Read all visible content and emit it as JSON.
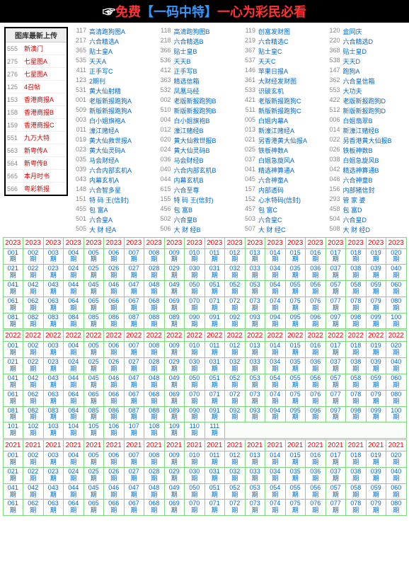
{
  "banner": {
    "hand": "☞",
    "t1": "免费",
    "t2": "【一码中特】",
    "t3": "一心为彩民必看"
  },
  "leftbox": {
    "title": "图库最新上传",
    "items": [
      {
        "n": "555",
        "t": "新澳门"
      },
      {
        "n": "275",
        "t": "七星图A"
      },
      {
        "n": "276",
        "t": "七星图A"
      },
      {
        "n": "125",
        "t": "4召帖"
      },
      {
        "n": "153",
        "t": "香港商报A"
      },
      {
        "n": "158",
        "t": "香港商报B"
      },
      {
        "n": "159",
        "t": "香港商报C"
      },
      {
        "n": "551",
        "t": "九万大特"
      },
      {
        "n": "563",
        "t": "新粤传A"
      },
      {
        "n": "564",
        "t": "新粤传B"
      },
      {
        "n": "565",
        "t": "本月时书"
      },
      {
        "n": "566",
        "t": "粤彩新报"
      }
    ]
  },
  "links": [
    [
      "117",
      "高清跑狗图A",
      "118",
      "高清跑狗图B",
      "119",
      "创富发财图",
      "120",
      "盒同庆"
    ],
    [
      "217",
      "六合精选A",
      "218",
      "六合精选B",
      "219",
      "六合精选C",
      "220",
      "六合精选D"
    ],
    [
      "365",
      "贴士皇A",
      "366",
      "贴士皇B",
      "367",
      "贴士皇C",
      "368",
      "贴士皇D"
    ],
    [
      "535",
      "天天A",
      "536",
      "天天B",
      "537",
      "天天C",
      "538",
      "天天D"
    ],
    [
      "411",
      "正手写C",
      "412",
      "正手写B",
      "146",
      "苹果日报A",
      "147",
      "跑狗A"
    ],
    [
      "123",
      "2期刊",
      "363",
      "精选信箱",
      "361",
      "大财经发财图",
      "362",
      "六合皇信箱"
    ],
    [
      "531",
      "黄大仙射精",
      "532",
      "凤凰马经",
      "533",
      "识破玄机",
      "553",
      "大功夫"
    ],
    [
      "001",
      "老版新报跑狗A",
      "002",
      "老版新报跑狗B",
      "421",
      "老版新报跑狗C",
      "422",
      "老版新报跑狗D"
    ],
    [
      "509",
      "新版新报跑狗A",
      "510",
      "新版新报跑狗B",
      "511",
      "新版新报跑狗C",
      "512",
      "新版新报跑狗D"
    ],
    [
      "003",
      "白小姐旗袍A",
      "004",
      "白小姐旗袍B",
      "005",
      "白姐内幕A",
      "006",
      "白姐翡翠B"
    ],
    [
      "011",
      "濠江赌经A",
      "012",
      "濠江赌经B",
      "013",
      "新濠江赌经A",
      "014",
      "新濠江赌经B"
    ],
    [
      "019",
      "黄大仙救世报A",
      "020",
      "黄大仙救世报B",
      "021",
      "另香港黄大仙报A",
      "022",
      "另香港黄大仙报B"
    ],
    [
      "023",
      "黄大仙灵码A",
      "024",
      "黄大仙灵码B",
      "025",
      "铁板神数A",
      "026",
      "铁板神数B"
    ],
    [
      "035",
      "马会财经A",
      "036",
      "马会财经B",
      "037",
      "白姐急旋风A",
      "038",
      "白姐急旋风B"
    ],
    [
      "039",
      "六合内部玄机A",
      "040",
      "六合内部玄机B",
      "041",
      "精选神算通A",
      "042",
      "精选神算通B"
    ],
    [
      "043",
      "内幕玄机A",
      "044",
      "内幕玄机B",
      "045",
      "六合神童A",
      "046",
      "六合神童B"
    ],
    [
      "148",
      "六合智多星",
      "615",
      "六合至尊",
      "157",
      "内部透码",
      "156",
      "内部猪信封"
    ],
    [
      "151",
      "特 码 王(信封)",
      "155",
      "特 码 王(信封)",
      "152",
      "心水特码(信封)",
      "293",
      "管 家 婆"
    ],
    [
      "455",
      "包 富A",
      "456",
      "包 富B",
      "457",
      "包 富C",
      "458",
      "包 富D"
    ],
    [
      "501",
      "六合皇A",
      "502",
      "六合皇B",
      "503",
      "六合皇C",
      "504",
      "六合皇D"
    ],
    [
      "505",
      "大 财 经A",
      "506",
      "大 财 经B",
      "507",
      "大 财 经C",
      "508",
      "大 财 经D"
    ]
  ],
  "cal": [
    {
      "year": "2023",
      "years": 20,
      "rows": 5,
      "count": 100,
      "blank": 0
    },
    {
      "year": "2022",
      "years": 20,
      "rows": 6,
      "count": 111,
      "blank": 9
    },
    {
      "year": "2021",
      "years": 20,
      "rows": 4,
      "count": 80,
      "blank": 0
    }
  ],
  "periodLabel": "期",
  "colors": {
    "gridBorder": "#7fd87f",
    "yearText": "#ff0000",
    "cellText": "#0066cc"
  }
}
